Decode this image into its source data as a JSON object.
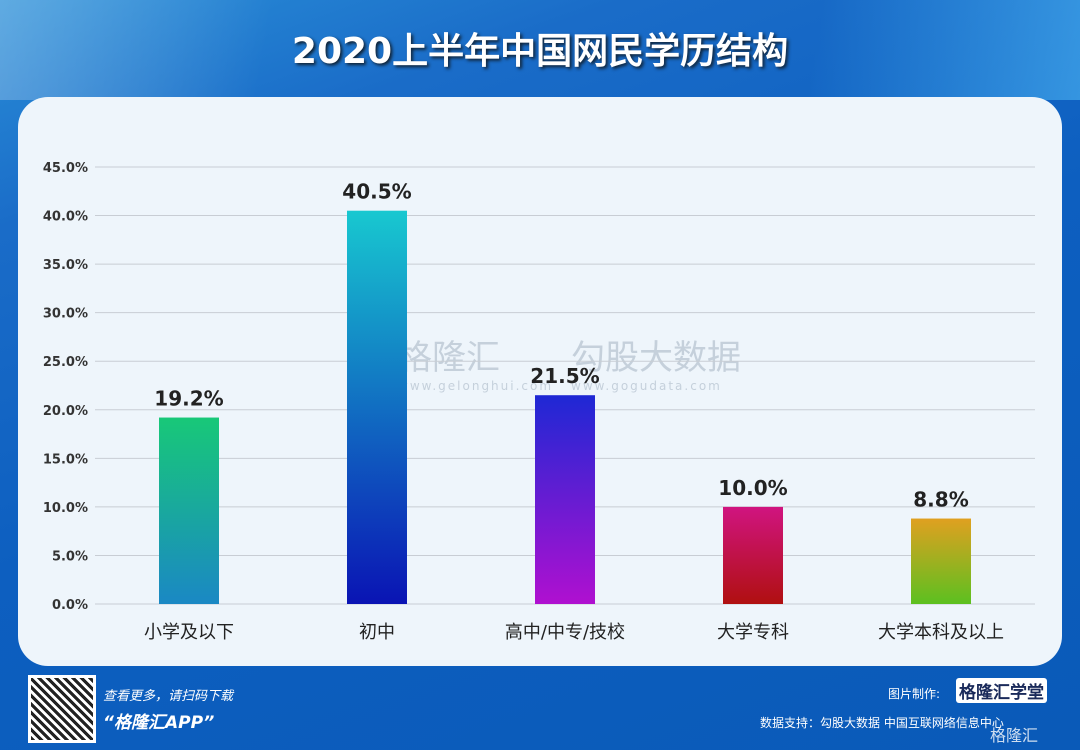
{
  "chart_data": {
    "type": "bar",
    "title": "2020上半年中国网民学历结构",
    "categories": [
      "小学及以下",
      "初中",
      "高中/中专/技校",
      "大学专科",
      "大学本科及以上"
    ],
    "values": [
      19.2,
      40.5,
      21.5,
      10.0,
      8.8
    ],
    "value_labels": [
      "19.2%",
      "40.5%",
      "21.5%",
      "10.0%",
      "8.8%"
    ],
    "yticks": [
      "0.0%",
      "5.0%",
      "10.0%",
      "15.0%",
      "20.0%",
      "25.0%",
      "30.0%",
      "35.0%",
      "40.0%",
      "45.0%"
    ],
    "ylim": [
      0,
      45
    ],
    "grid": true,
    "colors": [
      [
        "#18c878",
        "#1a88c4"
      ],
      [
        "#18c8d0",
        "#0a14b4"
      ],
      [
        "#1e28d4",
        "#b010d0"
      ],
      [
        "#d01480",
        "#b01010"
      ],
      [
        "#e0a020",
        "#5cc020"
      ]
    ]
  },
  "watermark": {
    "brand": "格隆汇",
    "brand_url": "www.gelonghui.com",
    "partner": "勾股大数据",
    "partner_url": "www.gogudata.com"
  },
  "footer": {
    "scan_text": "查看更多，请扫码下载",
    "app_name": "“格隆汇APP”",
    "made_by_label": "图片制作:",
    "made_by": "格隆汇学堂",
    "source": "数据支持：勾股大数据  中国互联网络信息中心",
    "corner_logo": "格隆汇"
  }
}
